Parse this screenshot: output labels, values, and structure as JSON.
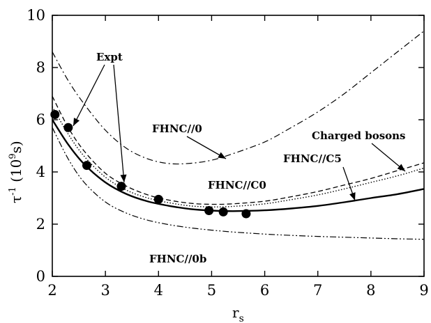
{
  "chart_data": {
    "type": "line",
    "xlabel": {
      "main": "r",
      "sub": "s"
    },
    "ylabel": {
      "tau": "τ",
      "sup": "-1",
      "open": " (10",
      "exp": "9",
      "close": "s)"
    },
    "xlim": [
      2,
      9
    ],
    "ylim": [
      0,
      10
    ],
    "xticks": [
      2,
      3,
      4,
      5,
      6,
      7,
      8,
      9
    ],
    "yticks": [
      0,
      2,
      4,
      6,
      8,
      10
    ],
    "grid": false,
    "legend": "none",
    "series": [
      {
        "name": "FHNC//0",
        "style": "dash-dot",
        "x": [
          2.0,
          2.3,
          2.6,
          3.0,
          3.4,
          3.8,
          4.2,
          4.6,
          5.0,
          5.4,
          6.0,
          6.5,
          7.0,
          7.5,
          8.0,
          8.5,
          9.0
        ],
        "y": [
          8.6,
          7.5,
          6.6,
          5.6,
          4.9,
          4.5,
          4.32,
          4.33,
          4.45,
          4.7,
          5.15,
          5.7,
          6.3,
          7.0,
          7.8,
          8.6,
          9.4
        ]
      },
      {
        "name": "Charged bosons",
        "style": "dashed",
        "x": [
          2.0,
          2.3,
          2.6,
          3.0,
          3.4,
          3.8,
          4.2,
          4.6,
          5.0,
          5.4,
          6.0,
          6.5,
          7.0,
          7.5,
          8.0,
          8.5,
          9.0
        ],
        "y": [
          6.9,
          5.7,
          4.8,
          3.95,
          3.45,
          3.12,
          2.92,
          2.8,
          2.76,
          2.78,
          2.88,
          3.05,
          3.25,
          3.5,
          3.75,
          4.05,
          4.35
        ]
      },
      {
        "name": "FHNC//C0",
        "style": "dotted",
        "x": [
          2.0,
          2.3,
          2.6,
          3.0,
          3.4,
          3.8,
          4.2,
          4.6,
          5.0,
          5.4,
          6.0,
          6.5,
          7.0,
          7.5,
          8.0,
          8.5,
          9.0
        ],
        "y": [
          6.5,
          5.45,
          4.6,
          3.8,
          3.3,
          3.0,
          2.82,
          2.7,
          2.66,
          2.68,
          2.78,
          2.94,
          3.12,
          3.35,
          3.6,
          3.85,
          4.15
        ]
      },
      {
        "name": "FHNC//C5",
        "style": "solid",
        "x": [
          2.0,
          2.3,
          2.6,
          3.0,
          3.4,
          3.8,
          4.2,
          4.6,
          5.0,
          5.4,
          6.0,
          6.5,
          7.0,
          7.5,
          8.0,
          8.5,
          9.0
        ],
        "y": [
          6.0,
          5.05,
          4.3,
          3.6,
          3.15,
          2.87,
          2.7,
          2.58,
          2.52,
          2.5,
          2.53,
          2.6,
          2.7,
          2.84,
          3.0,
          3.15,
          3.35
        ]
      },
      {
        "name": "FHNC//0b",
        "style": "dash-dot-dot",
        "x": [
          2.0,
          2.3,
          2.6,
          3.0,
          3.4,
          3.8,
          4.2,
          4.6,
          5.0,
          5.4,
          6.0,
          6.5,
          7.0,
          7.5,
          8.0,
          8.5,
          9.0
        ],
        "y": [
          5.7,
          4.5,
          3.6,
          2.85,
          2.42,
          2.15,
          1.98,
          1.86,
          1.77,
          1.7,
          1.62,
          1.57,
          1.53,
          1.5,
          1.47,
          1.44,
          1.42
        ]
      }
    ],
    "points": {
      "name": "Expt",
      "x": [
        2.05,
        2.3,
        2.65,
        3.3,
        4.0,
        4.95,
        5.22,
        5.65
      ],
      "y": [
        6.2,
        5.7,
        4.25,
        3.45,
        2.95,
        2.52,
        2.47,
        2.4
      ]
    },
    "annotations": [
      {
        "text": "Expt"
      },
      {
        "text": "FHNC//0"
      },
      {
        "text": "Charged bosons"
      },
      {
        "text": "FHNC//C5"
      },
      {
        "text": "FHNC//C0"
      },
      {
        "text": "FHNC//0b"
      }
    ]
  }
}
